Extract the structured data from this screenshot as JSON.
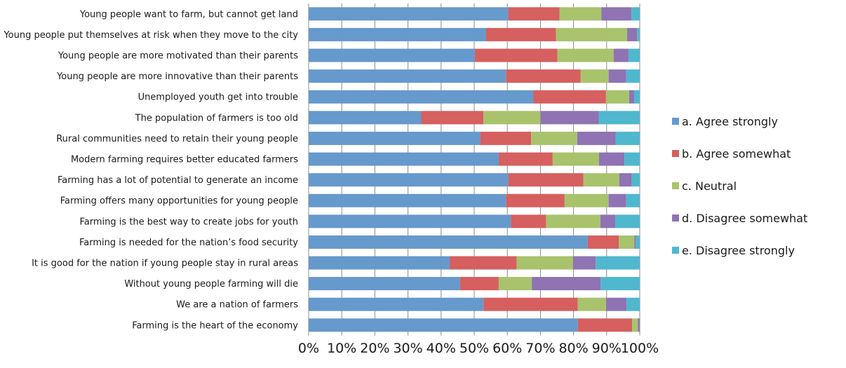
{
  "chart_data": {
    "type": "bar",
    "orientation": "horizontal",
    "stacked": "percent",
    "title": "",
    "xlabel": "",
    "ylabel": "",
    "xlim": [
      0,
      100
    ],
    "x_ticks": [
      "0%",
      "10%",
      "20%",
      "30%",
      "40%",
      "50%",
      "60%",
      "70%",
      "80%",
      "90%",
      "100%"
    ],
    "grid": "vertical",
    "legend_position": "right",
    "categories": [
      "Young people want to farm, but cannot get land",
      "Young people put themselves at risk when they move to the city",
      "Young people are more motivated than their parents",
      "Young people are more innovative than their parents",
      "Unemployed youth get into trouble",
      "The population of farmers is too old",
      "Rural communities need to retain their young people",
      "Modern farming requires better educated farmers",
      "Farming has a lot of potential to generate an income",
      "Farming offers many opportunities for young people",
      "Farming is the best way to create jobs for youth",
      "Farming is needed for the nation’s food security",
      "It is good for the nation if young people stay in rural areas",
      "Without young people farming will die",
      "We are a nation of farmers",
      "Farming is the heart of the economy"
    ],
    "series": [
      {
        "name": "a. Agree strongly",
        "color": "#6699cc",
        "values": [
          60.3,
          53.6,
          50.2,
          59.6,
          67.9,
          34.0,
          51.9,
          57.4,
          60.3,
          59.6,
          61.1,
          84.3,
          42.6,
          45.7,
          52.8,
          81.3
        ]
      },
      {
        "name": "b. Agree somewhat",
        "color": "#d65f5f",
        "values": [
          15.5,
          21.1,
          24.9,
          22.5,
          21.9,
          18.8,
          15.3,
          16.3,
          22.7,
          17.7,
          10.6,
          9.4,
          20.2,
          11.7,
          28.5,
          16.4
        ]
      },
      {
        "name": "c. Neutral",
        "color": "#a8c36b",
        "values": [
          12.6,
          21.5,
          17.0,
          8.5,
          7.0,
          17.2,
          13.9,
          14.0,
          10.8,
          13.3,
          16.4,
          4.7,
          17.0,
          10.0,
          8.5,
          1.7
        ]
      },
      {
        "name": "d. Disagree somewhat",
        "color": "#8f73b3",
        "values": [
          9.1,
          3.0,
          4.5,
          5.3,
          1.5,
          17.6,
          11.6,
          7.7,
          3.8,
          5.3,
          4.5,
          0.4,
          6.9,
          20.8,
          6.2,
          0.6
        ]
      },
      {
        "name": "e. Disagree strongly",
        "color": "#4fb7ce",
        "values": [
          2.5,
          0.8,
          3.4,
          4.1,
          1.7,
          12.4,
          7.3,
          4.6,
          2.4,
          4.1,
          7.4,
          1.2,
          13.3,
          11.8,
          4.0,
          0
        ]
      }
    ]
  }
}
